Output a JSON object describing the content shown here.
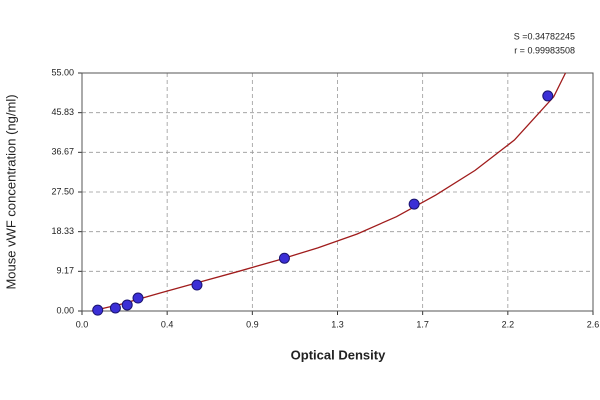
{
  "chart_data": {
    "type": "scatter",
    "xlabel": "Optical Density",
    "ylabel": "Mouse vWF concentration (ng/ml)",
    "annotations": [
      "S =0.34782245",
      "r = 0.99983508"
    ],
    "xlim": [
      0,
      2.6
    ],
    "xticks": [
      {
        "value": 0,
        "label": "0.0"
      },
      {
        "value": 0.4333,
        "label": "0.4"
      },
      {
        "value": 0.8667,
        "label": "0.9"
      },
      {
        "value": 1.3,
        "label": "1.3"
      },
      {
        "value": 1.7333,
        "label": "1.7"
      },
      {
        "value": 2.1667,
        "label": "2.2"
      },
      {
        "value": 2.6,
        "label": "2.6"
      }
    ],
    "ylim": [
      0,
      55
    ],
    "yticks": [
      {
        "value": 0,
        "label": "0.00"
      },
      {
        "value": 9.1667,
        "label": "9.17"
      },
      {
        "value": 18.3333,
        "label": "18.33"
      },
      {
        "value": 27.5,
        "label": "27.50"
      },
      {
        "value": 36.6667,
        "label": "36.67"
      },
      {
        "value": 45.8333,
        "label": "45.83"
      },
      {
        "value": 55,
        "label": "55.00"
      }
    ],
    "grid": true,
    "series": [
      {
        "type": "scatter",
        "color": "#3b2fd6",
        "x": [
          0.08,
          0.17,
          0.23,
          0.285,
          0.585,
          1.03,
          1.69,
          2.37
        ],
        "values": [
          0.2,
          0.7,
          1.4,
          3.0,
          6.0,
          12.2,
          24.7,
          49.7
        ]
      },
      {
        "type": "line",
        "color": "#a01c1c",
        "x": [
          0.05,
          0.2,
          0.4,
          0.6,
          0.8,
          1.0,
          1.2,
          1.4,
          1.6,
          1.8,
          2.0,
          2.2,
          2.4,
          2.46
        ],
        "values": [
          0,
          1.6,
          4.2,
          6.7,
          9.2,
          11.8,
          14.6,
          17.8,
          21.8,
          26.8,
          32.5,
          39.5,
          49.5,
          55
        ]
      }
    ]
  }
}
